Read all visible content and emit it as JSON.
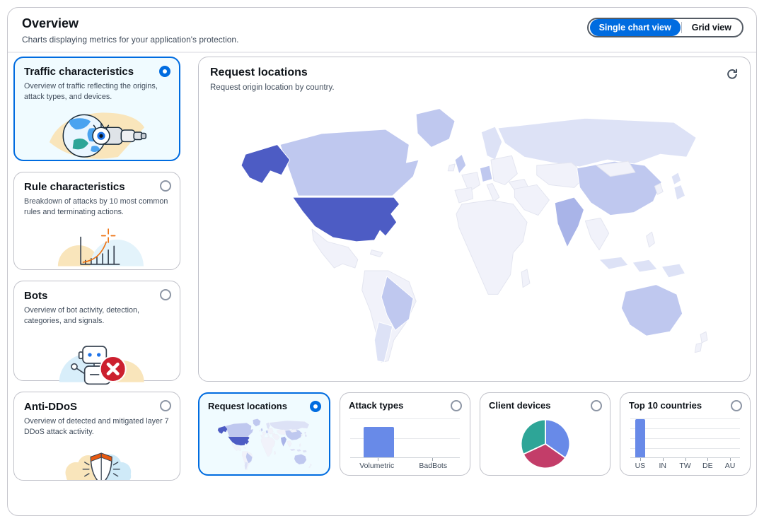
{
  "header": {
    "title": "Overview",
    "description": "Charts displaying metrics for your application's protection.",
    "view_toggle": {
      "options": [
        {
          "label": "Single chart view",
          "selected": true
        },
        {
          "label": "Grid view",
          "selected": false
        }
      ]
    }
  },
  "category_cards": [
    {
      "title": "Traffic characteristics",
      "description": "Overview of traffic reflecting the origins, attack types, and devices.",
      "selected": true,
      "illustration": "globe-telescope"
    },
    {
      "title": "Rule characteristics",
      "description": "Breakdown of attacks by 10 most common rules and terminating actions.",
      "selected": false,
      "illustration": "rising-chart"
    },
    {
      "title": "Bots",
      "description": "Overview of bot activity, detection, categories, and signals.",
      "selected": false,
      "illustration": "robot-blocked"
    },
    {
      "title": "Anti-DDoS",
      "description": "Overview of detected and mitigated layer 7 DDoS attack activity.",
      "selected": false,
      "illustration": "shield-clouds"
    }
  ],
  "main_chart": {
    "title": "Request locations",
    "subtitle": "Request origin location by country."
  },
  "mini_cards": [
    {
      "title": "Request locations",
      "selected": true
    },
    {
      "title": "Attack types",
      "selected": false
    },
    {
      "title": "Client devices",
      "selected": false
    },
    {
      "title": "Top 10 countries",
      "selected": false
    }
  ],
  "chart_data": [
    {
      "name": "Request locations",
      "type": "heatmap",
      "subtype": "world-choropleth",
      "legend": "none shown",
      "country_intensity": {
        "United States": "high",
        "Alaska (US)": "high",
        "Canada": "medium",
        "Greenland": "medium",
        "Brazil": "medium",
        "United Kingdom": "medium",
        "Germany": "medium",
        "China": "medium",
        "Australia": "medium",
        "India": "medium-high",
        "Russia": "low",
        "Scandinavia": "low",
        "Argentina": "low",
        "Indonesia": "low",
        "Japan": "low",
        "Mexico": "minimal",
        "Africa": "minimal",
        "rest_of_world": "minimal"
      }
    },
    {
      "name": "Attack types",
      "type": "bar",
      "categories": [
        "Volumetric",
        "BadBots"
      ],
      "values": [
        77,
        0
      ],
      "note": "values estimated as % of chart height; no numeric axis shown"
    },
    {
      "name": "Client devices",
      "type": "pie",
      "slices": [
        {
          "color_key": "blue",
          "value_pct": 34
        },
        {
          "color_key": "red",
          "value_pct": 34
        },
        {
          "color_key": "teal",
          "value_pct": 32
        }
      ],
      "note": "three roughly equal slices; no labels shown"
    },
    {
      "name": "Top 10 countries",
      "type": "bar",
      "categories": [
        "US",
        "IN",
        "TW",
        "DE",
        "AU"
      ],
      "values": [
        97,
        0,
        0,
        0,
        0
      ],
      "note": "values estimated as % of chart height; no numeric axis shown"
    }
  ],
  "theme": {
    "accent_blue": "#006ce0",
    "selected_card_bg": "#f0fbff",
    "card_border": "#c0c1c9",
    "map_high": "#4d5cc4",
    "map_med2": "#a9b4e8",
    "map_med": "#bfc8ef",
    "map_low": "#dde2f6",
    "map_min": "#f1f2fa",
    "chart_bar_blue": "#688ae8",
    "pie_blue": "#688ae8",
    "pie_red": "#c33d69",
    "pie_teal": "#2ea597"
  }
}
